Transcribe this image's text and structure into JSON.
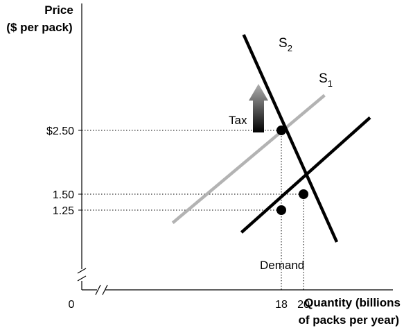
{
  "chart_data": {
    "type": "line",
    "ylabel": [
      "Price",
      "($ per pack)"
    ],
    "xlabel": [
      "Quantity (billions",
      "of packs per year)"
    ],
    "origin_label": "0",
    "xlim": [
      0,
      31.5
    ],
    "ylim": [
      0,
      4.5
    ],
    "y_ticks": [
      {
        "value": 2.5,
        "label": "$2.50"
      },
      {
        "value": 1.5,
        "label": "1.50"
      },
      {
        "value": 1.25,
        "label": "1.25"
      }
    ],
    "x_ticks": [
      {
        "value": 18,
        "label": "18"
      },
      {
        "value": 20,
        "label": "20"
      }
    ],
    "series": [
      {
        "name": "Demand",
        "color": "#000000",
        "points": [
          [
            14.6,
            4.0
          ],
          [
            23.0,
            0.75
          ]
        ]
      },
      {
        "name": "S1",
        "color": "#000000",
        "points": [
          [
            14.4,
            0.9
          ],
          [
            26.0,
            2.7
          ]
        ]
      },
      {
        "name": "S2",
        "color": "#b3b3b3",
        "points": [
          [
            8.2,
            1.05
          ],
          [
            21.9,
            3.05
          ]
        ]
      }
    ],
    "equilibria": [
      {
        "x": 18,
        "y": 2.5
      },
      {
        "x": 20,
        "y": 1.5
      },
      {
        "x": 18,
        "y": 1.25
      }
    ],
    "annotations": {
      "s1": {
        "base": "S",
        "sub": "1"
      },
      "s2": {
        "base": "S",
        "sub": "2"
      },
      "demand": "Demand",
      "tax": "Tax"
    }
  }
}
